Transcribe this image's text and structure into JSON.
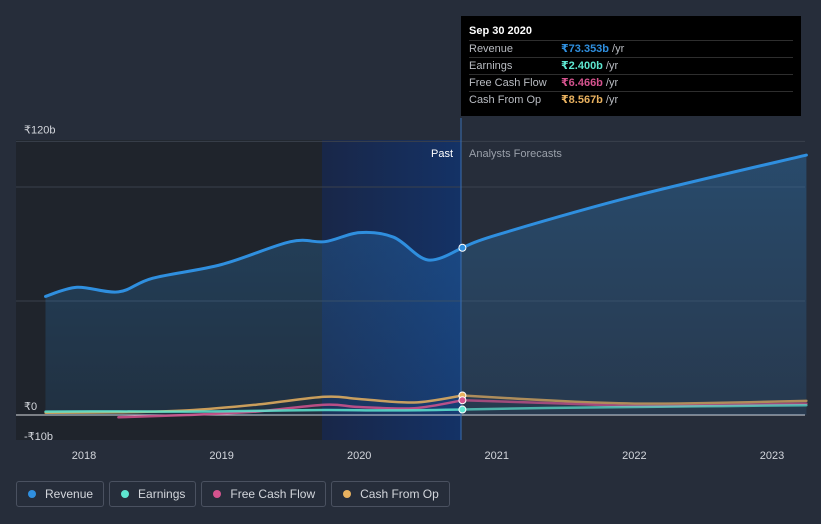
{
  "tooltip": {
    "date": "Sep 30 2020",
    "rows": [
      {
        "label": "Revenue",
        "value": "₹73.353b",
        "unit": "/yr",
        "color": "#2f8fdf"
      },
      {
        "label": "Earnings",
        "value": "₹2.400b",
        "unit": "/yr",
        "color": "#5ee6d0"
      },
      {
        "label": "Free Cash Flow",
        "value": "₹6.466b",
        "unit": "/yr",
        "color": "#d4538e"
      },
      {
        "label": "Cash From Op",
        "value": "₹8.567b",
        "unit": "/yr",
        "color": "#e8b15f"
      }
    ]
  },
  "legend": [
    {
      "label": "Revenue",
      "color": "#2f8fdf"
    },
    {
      "label": "Earnings",
      "color": "#5ee6d0"
    },
    {
      "label": "Free Cash Flow",
      "color": "#d4538e"
    },
    {
      "label": "Cash From Op",
      "color": "#e8b15f"
    }
  ],
  "chart_data": {
    "type": "area",
    "title": "",
    "xlabel": "",
    "ylabel": "",
    "ylim": [
      -10,
      120
    ],
    "xlim": [
      2017.7,
      2023.25
    ],
    "y_tick_labels": [
      {
        "value": 120,
        "label": "₹120b"
      },
      {
        "value": 0,
        "label": "₹0"
      },
      {
        "value": -10,
        "label": "-₹10b"
      }
    ],
    "x_ticks": [
      2018,
      2019,
      2020,
      2021,
      2022,
      2023
    ],
    "divider_x": 2020.75,
    "past_band_start": 2019.75,
    "section_labels": {
      "past": "Past",
      "forecast": "Analysts Forecasts"
    },
    "series": [
      {
        "name": "Revenue",
        "color": "#2f8fdf",
        "area": true,
        "x": [
          2017.72,
          2017.95,
          2018.25,
          2018.5,
          2019.0,
          2019.5,
          2019.75,
          2020.0,
          2020.25,
          2020.5,
          2020.75
        ],
        "y": [
          52,
          56,
          54,
          60,
          66,
          76,
          76,
          80,
          78,
          68,
          73.353
        ],
        "forecast": {
          "x": [
            2020.75,
            2021,
            2022,
            2023.25
          ],
          "y": [
            73.353,
            79,
            96,
            114
          ]
        }
      },
      {
        "name": "Earnings",
        "color": "#5ee6d0",
        "x": [
          2017.72,
          2018.25,
          2018.75,
          2019.25,
          2019.75,
          2020.25,
          2020.75
        ],
        "y": [
          1.5,
          1.6,
          1.5,
          1.8,
          2.2,
          2.0,
          2.4
        ],
        "forecast": {
          "x": [
            2020.75,
            2021.5,
            2022.5,
            2023.25
          ],
          "y": [
            2.4,
            3.2,
            3.8,
            4.3
          ]
        }
      },
      {
        "name": "Free Cash Flow",
        "color": "#d4538e",
        "x": [
          2018.25,
          2018.75,
          2019.25,
          2019.75,
          2020.0,
          2020.4,
          2020.75
        ],
        "y": [
          -1.0,
          0.0,
          1.5,
          4.5,
          3.5,
          3.0,
          6.466
        ],
        "forecast": {
          "x": [
            2020.75,
            2021.5,
            2022.0,
            2022.5,
            2023.25
          ],
          "y": [
            6.466,
            5.0,
            4.0,
            4.2,
            5.0
          ]
        }
      },
      {
        "name": "Cash From Op",
        "color": "#e8b15f",
        "x": [
          2017.72,
          2018.25,
          2018.75,
          2019.25,
          2019.75,
          2020.0,
          2020.4,
          2020.75
        ],
        "y": [
          1.0,
          1.2,
          2.0,
          4.5,
          8.0,
          7.0,
          5.5,
          8.567
        ],
        "forecast": {
          "x": [
            2020.75,
            2021.5,
            2022.0,
            2022.5,
            2023.25
          ],
          "y": [
            8.567,
            6.0,
            5.0,
            5.2,
            6.2
          ]
        }
      }
    ]
  }
}
